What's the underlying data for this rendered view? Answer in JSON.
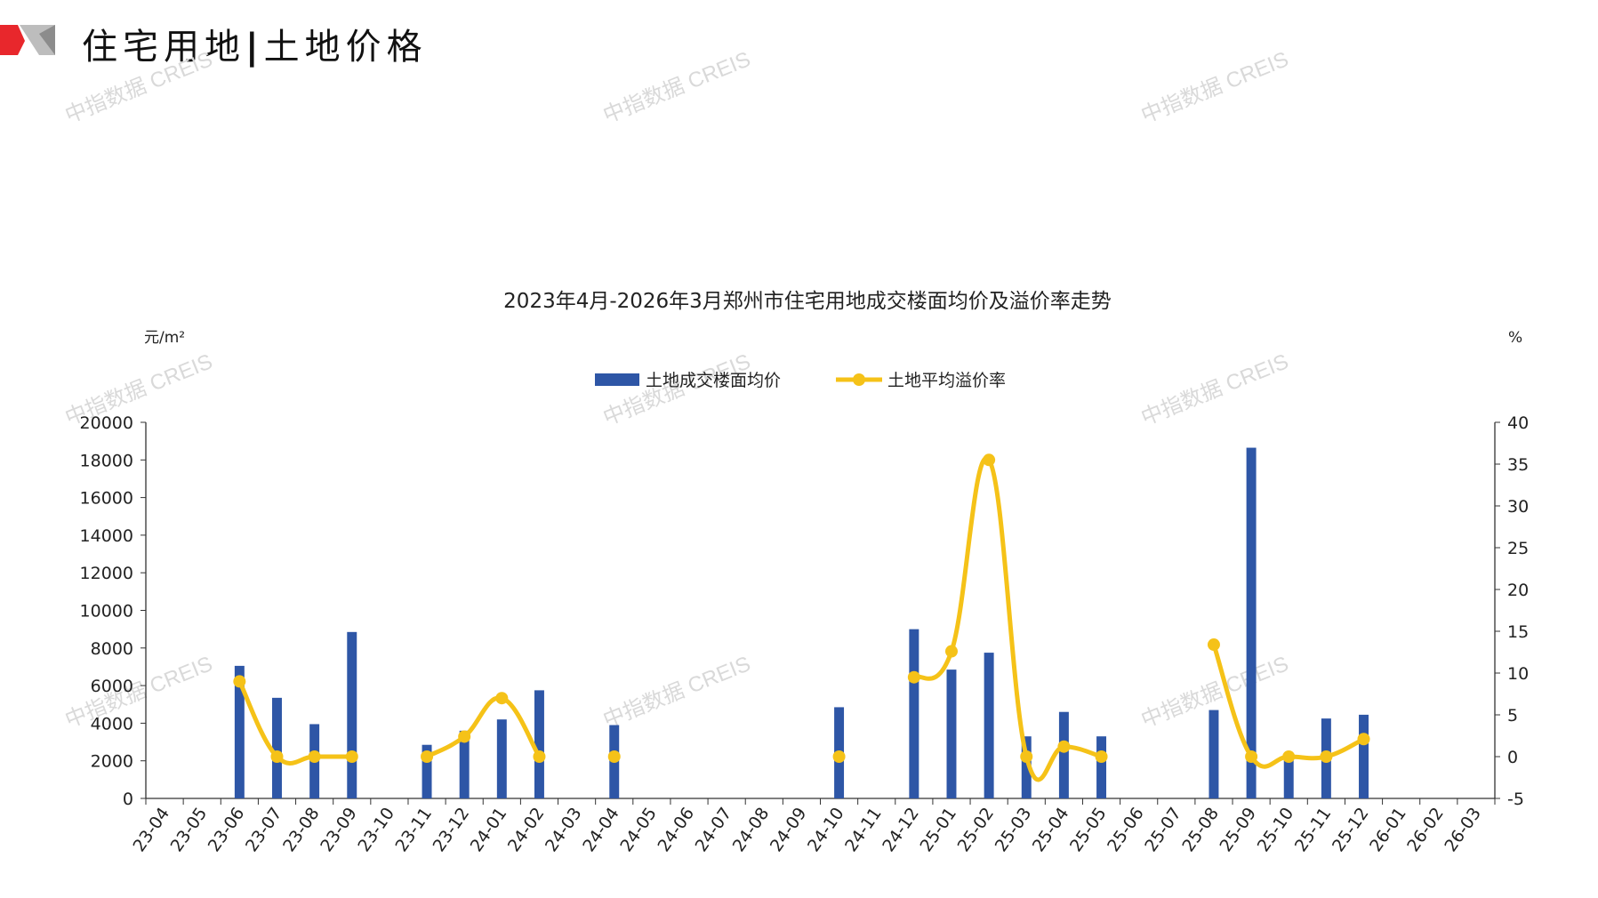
{
  "header": {
    "title_left": "住宅用地",
    "separator": "|",
    "title_right": "土地价格"
  },
  "watermark_text": "中指数据 CREIS",
  "colors": {
    "bar": "#2e56a6",
    "line": "#f5c218",
    "logo_red": "#e8272c",
    "logo_grey": "#bdbdbd"
  },
  "chart_data": {
    "type": "bar",
    "title": "2023年4月-2026年3月郑州市住宅用地成交楼面均价及溢价率走势",
    "ylabel_left": "元/m²",
    "ylabel_right": "%",
    "ylim_left": [
      0,
      20000
    ],
    "ylim_right": [
      -5,
      40
    ],
    "yticks_left": [
      0,
      2000,
      4000,
      6000,
      8000,
      10000,
      12000,
      14000,
      16000,
      18000,
      20000
    ],
    "yticks_right": [
      -5,
      0,
      5,
      10,
      15,
      20,
      25,
      30,
      35,
      40
    ],
    "legend_position": "top-center",
    "categories": [
      "23-04",
      "23-05",
      "23-06",
      "23-07",
      "23-08",
      "23-09",
      "23-10",
      "23-11",
      "23-12",
      "24-01",
      "24-02",
      "24-03",
      "24-04",
      "24-05",
      "24-06",
      "24-07",
      "24-08",
      "24-09",
      "24-10",
      "24-11",
      "24-12",
      "25-01",
      "25-02",
      "25-03",
      "25-04",
      "25-05",
      "25-06",
      "25-07",
      "25-08",
      "25-09",
      "25-10",
      "25-11",
      "25-12",
      "26-01",
      "26-02",
      "26-03"
    ],
    "series": [
      {
        "name": "土地成交楼面均价",
        "type": "bar",
        "axis": "left",
        "values": [
          null,
          null,
          7050,
          5350,
          3950,
          8850,
          null,
          2850,
          3600,
          4200,
          5750,
          null,
          3900,
          null,
          null,
          null,
          null,
          null,
          4850,
          null,
          9000,
          6850,
          7750,
          3300,
          4600,
          3300,
          null,
          null,
          4700,
          18650,
          2300,
          4250,
          4450,
          null,
          null,
          null
        ]
      },
      {
        "name": "土地平均溢价率",
        "type": "line",
        "axis": "right",
        "values": [
          null,
          null,
          9,
          0,
          0,
          0,
          null,
          0,
          2.4,
          7,
          0,
          null,
          0,
          null,
          null,
          null,
          null,
          null,
          0,
          null,
          9.5,
          12.6,
          35.5,
          0,
          1.2,
          0,
          null,
          null,
          13.4,
          0,
          0,
          0,
          2.1,
          null,
          null,
          null
        ]
      }
    ]
  }
}
